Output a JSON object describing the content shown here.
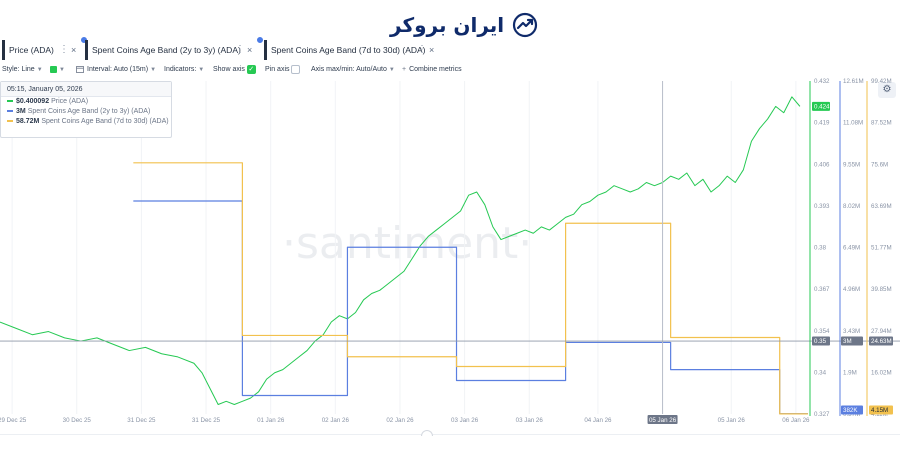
{
  "logo": {
    "text": "ایران بروکر",
    "color": "#0f2a6a"
  },
  "tabs": [
    {
      "label": "Price (ADA)",
      "color": "#26c953",
      "badge": true
    },
    {
      "label": "Spent Coins Age Band (2y to 3y) (ADA)",
      "color": "#5b7fe0",
      "badge": true
    },
    {
      "label": "Spent Coins Age Band (7d to 30d) (ADA)",
      "color": "#f2c14e",
      "badge": false
    }
  ],
  "tab_icons": {
    "menu": "⋮",
    "close": "×",
    "settings": "⚙"
  },
  "toolbar": {
    "style": "Style: Line",
    "interval": "Interval: Auto (15m)",
    "indicators": "Indicators:",
    "show_axis": "Show axis",
    "pin_axis": "Pin axis",
    "axis_minmax": "Axis max/min: Auto/Auto",
    "combine": "Combine metrics",
    "show_axis_checked": true,
    "pin_axis_checked": false
  },
  "tooltip": {
    "date": "05:15, January 05, 2026",
    "rows": [
      {
        "value": "$0.400092",
        "name": "Price (ADA)",
        "color": "#26c953"
      },
      {
        "value": "3M",
        "name": "Spent Coins Age Band (2y to 3y) (ADA)",
        "color": "#5b7fe0"
      },
      {
        "value": "58.72M",
        "name": "Spent Coins Age Band (7d to 30d) (ADA)",
        "color": "#f2c14e"
      }
    ]
  },
  "watermark": "·santiment·",
  "chart_data": {
    "type": "line",
    "x_range": [
      0,
      100
    ],
    "x_ticks": [
      {
        "x": 1.5,
        "label": "29 Dec 25"
      },
      {
        "x": 9.5,
        "label": "30 Dec 25"
      },
      {
        "x": 17.5,
        "label": "31 Dec 25"
      },
      {
        "x": 25.5,
        "label": "31 Dec 25"
      },
      {
        "x": 33.5,
        "label": "01 Jan 26"
      },
      {
        "x": 41.5,
        "label": "02 Jan 26"
      },
      {
        "x": 49.5,
        "label": "02 Jan 26"
      },
      {
        "x": 57.5,
        "label": "03 Jan 26"
      },
      {
        "x": 65.5,
        "label": "03 Jan 26"
      },
      {
        "x": 74,
        "label": "04 Jan 26"
      },
      {
        "x": 82,
        "label": "05 Jan 26",
        "highlight": true
      },
      {
        "x": 90.5,
        "label": "05 Jan 26"
      },
      {
        "x": 98.5,
        "label": "06 Jan 26"
      }
    ],
    "cursor_x": 82,
    "axes": {
      "price": {
        "ticks": [
          "0.432",
          "0.419",
          "0.406",
          "0.393",
          "0.38",
          "0.367",
          "0.354",
          "0.34",
          "0.327"
        ],
        "range": [
          0.327,
          0.432
        ],
        "last_value": "0.424",
        "cursor_value": "0.35",
        "color": "#26c953"
      },
      "band_2y_3y": {
        "ticks": [
          "12.61M",
          "11.08M",
          "9.55M",
          "8.02M",
          "6.49M",
          "4.96M",
          "3.43M",
          "1.9M",
          "0.37M"
        ],
        "range": [
          0.37,
          12.61
        ],
        "last_value": "382K",
        "cursor_value": "3M",
        "color": "#5b7fe0"
      },
      "band_7d_30d": {
        "ticks": [
          "99.42M",
          "87.52M",
          "75.6M",
          "63.69M",
          "51.77M",
          "39.85M",
          "27.94M",
          "16.02M",
          "4.11M"
        ],
        "range": [
          4.11,
          99.42
        ],
        "last_value": "4.15M",
        "cursor_value": "24.63M",
        "color": "#f2c14e"
      }
    },
    "series": [
      {
        "name": "Price (ADA)",
        "axis": "price",
        "color": "#26c953",
        "x": [
          0,
          2,
          4,
          6,
          8,
          10,
          12,
          14,
          16,
          18,
          20,
          22,
          24,
          25,
          26,
          27,
          28,
          29,
          30,
          31,
          32,
          33,
          34,
          35,
          36,
          37,
          38,
          39,
          40,
          41,
          42,
          43,
          44,
          45,
          46,
          47,
          48,
          49,
          50,
          51,
          52,
          53,
          54,
          55,
          56,
          57,
          58,
          59,
          60,
          61,
          62,
          63,
          64,
          65,
          66,
          67,
          68,
          69,
          70,
          71,
          72,
          73,
          74,
          75,
          76,
          77,
          78,
          79,
          80,
          81,
          82,
          83,
          84,
          85,
          86,
          87,
          88,
          89,
          90,
          91,
          92,
          93,
          94,
          95,
          96,
          97,
          98,
          99
        ],
        "y": [
          0.356,
          0.354,
          0.352,
          0.353,
          0.351,
          0.35,
          0.351,
          0.349,
          0.347,
          0.348,
          0.346,
          0.345,
          0.343,
          0.34,
          0.335,
          0.33,
          0.331,
          0.33,
          0.331,
          0.332,
          0.334,
          0.338,
          0.34,
          0.341,
          0.343,
          0.345,
          0.347,
          0.35,
          0.352,
          0.356,
          0.358,
          0.357,
          0.359,
          0.363,
          0.365,
          0.366,
          0.368,
          0.37,
          0.372,
          0.376,
          0.38,
          0.383,
          0.385,
          0.387,
          0.389,
          0.391,
          0.396,
          0.397,
          0.393,
          0.386,
          0.382,
          0.383,
          0.384,
          0.385,
          0.384,
          0.386,
          0.385,
          0.387,
          0.389,
          0.39,
          0.393,
          0.394,
          0.396,
          0.397,
          0.399,
          0.398,
          0.397,
          0.398,
          0.4,
          0.399,
          0.4,
          0.402,
          0.401,
          0.403,
          0.399,
          0.401,
          0.397,
          0.399,
          0.402,
          0.4,
          0.404,
          0.413,
          0.417,
          0.42,
          0.424,
          0.422,
          0.427,
          0.424
        ]
      },
      {
        "name": "Spent Coins Age Band (2y to 3y) (ADA)",
        "axis": "band_2y_3y",
        "color": "#5b7fe0",
        "step": true,
        "x": [
          16.5,
          30,
          43,
          56.5,
          70,
          83,
          96.5
        ],
        "y": [
          8.2,
          1.05,
          6.5,
          1.6,
          3.0,
          2.0,
          0.382
        ]
      },
      {
        "name": "Spent Coins Age Band (7d to 30d) (ADA)",
        "axis": "band_7d_30d",
        "color": "#f2c14e",
        "step": true,
        "x": [
          16.5,
          30,
          43,
          56.5,
          70,
          83,
          96.5
        ],
        "y": [
          76.0,
          26.6,
          20.5,
          17.7,
          58.7,
          26.0,
          4.15
        ]
      }
    ]
  }
}
